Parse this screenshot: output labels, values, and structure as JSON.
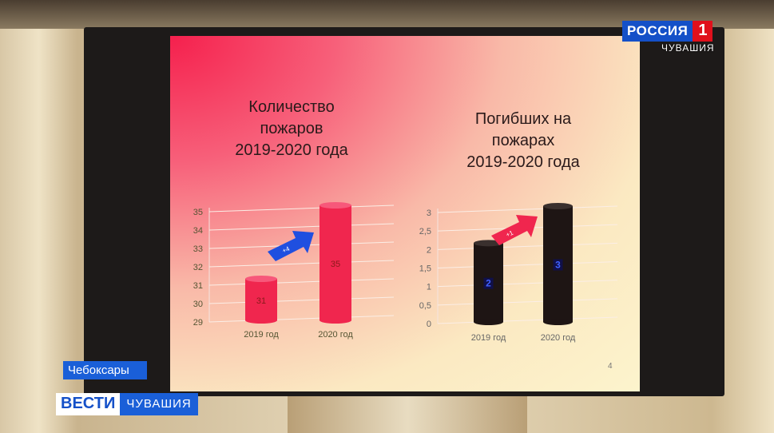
{
  "broadcast": {
    "channel": "РОССИЯ",
    "channel_number": "1",
    "region": "ЧУВАШИЯ",
    "location": "Чебоксары",
    "program": "ВЕСТИ",
    "program_region": "ЧУВАШИЯ"
  },
  "slide": {
    "page_number": "4"
  },
  "chart_data": [
    {
      "type": "bar",
      "title": [
        "Количество",
        "пожаров",
        "2019-2020 года"
      ],
      "categories": [
        "2019 год",
        "2020 год"
      ],
      "values": [
        31,
        35
      ],
      "data_labels": [
        "31",
        "35"
      ],
      "ylim": [
        29,
        35
      ],
      "yticks": [
        "29",
        "30",
        "31",
        "32",
        "33",
        "34",
        "35"
      ],
      "annotation": "+4",
      "bar_color": "#f0264e",
      "arrow_color": "#1f4fe0",
      "grid": true
    },
    {
      "type": "bar",
      "title": [
        "Погибших на",
        "пожарах",
        "2019-2020 года"
      ],
      "categories": [
        "2019 год",
        "2020 год"
      ],
      "values": [
        2,
        3
      ],
      "data_labels": [
        "2",
        "3"
      ],
      "ylim": [
        0,
        3
      ],
      "yticks": [
        "0",
        "0,5",
        "1",
        "1,5",
        "2",
        "2,5",
        "3"
      ],
      "annotation": "+1",
      "bar_color": "#1e1514",
      "arrow_color": "#f0264e",
      "grid": true
    }
  ]
}
